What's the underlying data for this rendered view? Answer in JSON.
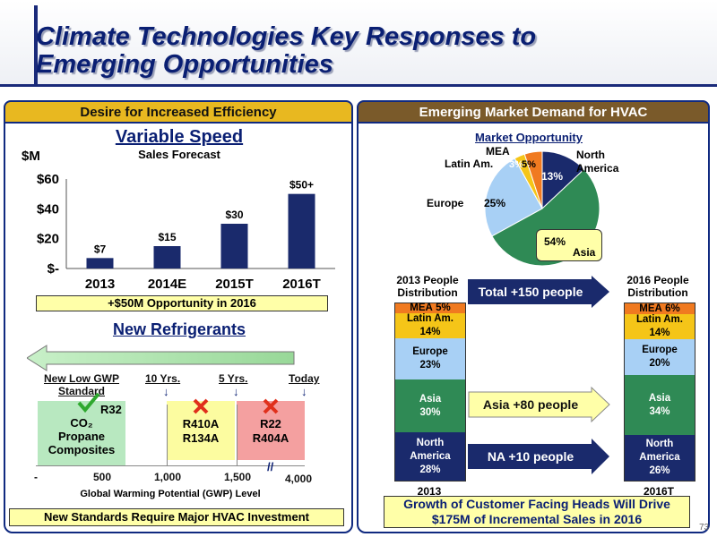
{
  "page": {
    "title_line1": "Climate Technologies Key Responses to",
    "title_line2": "Emerging Opportunities",
    "slide_number": "73"
  },
  "colors": {
    "navy": "#1a2a6c",
    "header_gold": "#e8b820",
    "header_brown": "#7a5a2a",
    "highlight_yellow": "#ffffa8",
    "green_check": "#2fa82f",
    "red_x": "#e0301c",
    "stack_mea": "#f07a20",
    "stack_latin": "#f5c518",
    "stack_europe": "#a8d0f5",
    "stack_asia": "#2f8a55",
    "stack_na": "#1a2a6c"
  },
  "left_panel": {
    "header": "Desire for Increased Efficiency",
    "variable_speed": {
      "title": "Variable Speed",
      "subtitle": "Sales Forecast",
      "unit": "$M",
      "highlight": "+$50M Opportunity in 2016"
    },
    "new_refrigerants": {
      "title": "New Refrigerants",
      "markers": [
        "New Low GWP Standard",
        "10 Yrs.",
        "5 Yrs.",
        "Today"
      ],
      "green_box": {
        "top": "R32",
        "lines": [
          "CO₂",
          "Propane",
          "Composites"
        ]
      },
      "yellow_box": [
        "R410A",
        "R134A"
      ],
      "red_box": [
        "R22",
        "R404A"
      ],
      "axis_ticks": [
        "-",
        "500",
        "1,000",
        "1,500",
        "4,000"
      ],
      "axis_label": "Global Warming Potential (GWP) Level",
      "footer": "New Standards Require Major HVAC Investment"
    }
  },
  "chart_data": [
    {
      "type": "bar",
      "title": "Variable Speed",
      "subtitle": "Sales Forecast",
      "ylabel": "$M",
      "categories": [
        "2013",
        "2014E",
        "2015T",
        "2016T"
      ],
      "values": [
        7,
        15,
        30,
        50
      ],
      "data_labels": [
        "$7",
        "$15",
        "$30",
        "$50+"
      ],
      "y_ticks": [
        "$-",
        "$20",
        "$40",
        "$60"
      ],
      "ylim": [
        0,
        60
      ],
      "color": "#1a2a6c"
    },
    {
      "type": "pie",
      "title": "Market Opportunity",
      "slices": [
        {
          "label": "North America",
          "value": 13,
          "text": "13%",
          "color": "#1a2a6c"
        },
        {
          "label": "Asia",
          "value": 54,
          "text": "54%",
          "color": "#2f8a55"
        },
        {
          "label": "Europe",
          "value": 25,
          "text": "25%",
          "color": "#a8d0f5"
        },
        {
          "label": "Latin Am.",
          "value": 3,
          "text": "3%",
          "color": "#f5c518"
        },
        {
          "label": "MEA",
          "value": 5,
          "text": "5%",
          "color": "#f07a20"
        }
      ]
    }
  ],
  "right_panel": {
    "header": "Emerging Market Demand for HVAC",
    "pie_title": "Market Opportunity",
    "pie_labels": {
      "mea": "MEA",
      "latin": "Latin Am.",
      "europe": "Europe",
      "north_america": "North America",
      "asia": "Asia",
      "asia_pct": "54%",
      "na_pct": "13%",
      "eu_pct": "25%",
      "la_pct": "3%",
      "mea_pct": "5%"
    },
    "stack_2013": {
      "title": "2013 People Distribution",
      "xlabel": "2013",
      "segments": [
        {
          "name": "MEA",
          "pct": "5%",
          "value": 5
        },
        {
          "name": "Latin Am.",
          "pct": "14%",
          "value": 14
        },
        {
          "name": "Europe",
          "pct": "23%",
          "value": 23
        },
        {
          "name": "Asia",
          "pct": "30%",
          "value": 30
        },
        {
          "name": "North America",
          "pct": "28%",
          "value": 28
        }
      ]
    },
    "stack_2016": {
      "title": "2016 People Distribution",
      "xlabel": "2016T",
      "segments": [
        {
          "name": "MEA",
          "pct": "6%",
          "value": 6
        },
        {
          "name": "Latin Am.",
          "pct": "14%",
          "value": 14
        },
        {
          "name": "Europe",
          "pct": "20%",
          "value": 20
        },
        {
          "name": "Asia",
          "pct": "34%",
          "value": 34
        },
        {
          "name": "North America",
          "pct": "26%",
          "value": 26
        }
      ]
    },
    "arrows": [
      "Total +150 people",
      "Asia +80 people",
      "NA +10 people"
    ],
    "footer_line1": "Growth of Customer Facing Heads Will Drive",
    "footer_line2": "$175M of Incremental Sales in 2016"
  }
}
